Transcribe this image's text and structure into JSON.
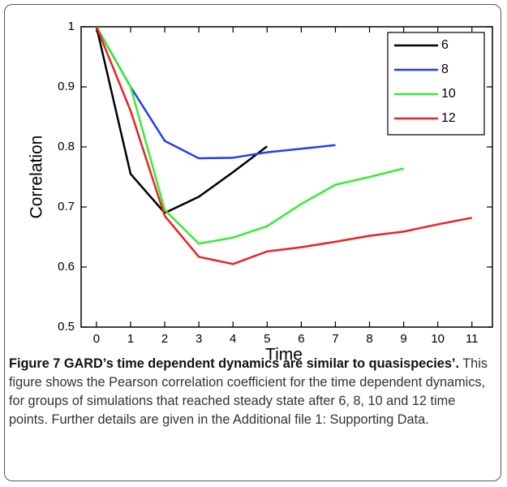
{
  "chart_data": {
    "type": "line",
    "x_label": "Time",
    "y_label": "Correlation",
    "x": [
      0,
      1,
      2,
      3,
      4,
      5,
      6,
      7,
      8,
      9,
      10,
      11
    ],
    "series": [
      {
        "name": "6",
        "color": "#000000",
        "values": [
          1,
          0.755,
          0.69,
          0.717,
          0.758,
          0.801,
          null,
          null,
          null,
          null,
          null,
          null
        ]
      },
      {
        "name": "8",
        "color": "#1f3ff0",
        "values": [
          1,
          0.9,
          0.81,
          0.781,
          0.782,
          0.791,
          0.797,
          0.803,
          null,
          null,
          null,
          null
        ]
      },
      {
        "name": "10",
        "color": "#33ee33",
        "values": [
          1,
          0.9,
          0.695,
          0.639,
          0.649,
          0.668,
          0.705,
          0.737,
          0.75,
          0.764,
          null,
          null
        ]
      },
      {
        "name": "12",
        "color": "#ee2020",
        "values": [
          1,
          0.86,
          0.685,
          0.617,
          0.605,
          0.626,
          0.633,
          0.642,
          0.652,
          0.659,
          0.671,
          0.682
        ]
      }
    ],
    "xlim": [
      -0.45,
      11.6
    ],
    "xticks": [
      0,
      1,
      2,
      3,
      4,
      5,
      6,
      7,
      8,
      9,
      10,
      11
    ],
    "ylim": [
      0.5,
      1
    ],
    "yticks": [
      0.5,
      0.6,
      0.7,
      0.8,
      0.9,
      1
    ],
    "legend": "upper right"
  },
  "caption": {
    "label": "Figure 7",
    "title": "GARD’s time dependent dynamics are similar to quasispecies’.",
    "text": "This figure shows the Pearson correlation coefficient for the time dependent dynamics, for groups of simulations that reached steady state after 6, 8, 10 and 12 time points. Further details are given in the Additional file 1: Supporting Data."
  }
}
